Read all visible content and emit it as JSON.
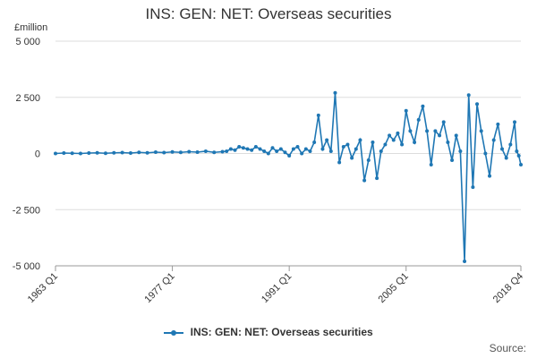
{
  "chart_data": {
    "type": "line",
    "title": "INS: GEN: NET: Overseas securities",
    "ylabel": "£million",
    "xlabel": "",
    "ylim": [
      -5000,
      5000
    ],
    "yticks": [
      -5000,
      -2500,
      0,
      2500,
      5000
    ],
    "ytick_labels": [
      "-5 000",
      "-2 500",
      "0",
      "2 500",
      "5 000"
    ],
    "xticks": [
      "1963 Q1",
      "1977 Q1",
      "1991 Q1",
      "2005 Q1",
      "2018 Q4"
    ],
    "x_start": "1963 Q1",
    "x_end": "2018 Q4",
    "grid": true,
    "legend_position": "bottom",
    "source_label": "Source:",
    "colors": {
      "series": "#1f77b4",
      "grid": "#dddddd",
      "axis": "#999999",
      "text": "#333333"
    },
    "series": [
      {
        "name": "INS: GEN: NET: Overseas securities",
        "x": [
          "1963 Q1",
          "1964 Q1",
          "1965 Q1",
          "1966 Q1",
          "1967 Q1",
          "1968 Q1",
          "1969 Q1",
          "1970 Q1",
          "1971 Q1",
          "1972 Q1",
          "1973 Q1",
          "1974 Q1",
          "1975 Q1",
          "1976 Q1",
          "1977 Q1",
          "1978 Q1",
          "1979 Q1",
          "1980 Q1",
          "1981 Q1",
          "1982 Q1",
          "1983 Q1",
          "1983 Q3",
          "1984 Q1",
          "1984 Q3",
          "1985 Q1",
          "1985 Q3",
          "1986 Q1",
          "1986 Q3",
          "1987 Q1",
          "1987 Q3",
          "1988 Q1",
          "1988 Q3",
          "1989 Q1",
          "1989 Q3",
          "1990 Q1",
          "1990 Q3",
          "1991 Q1",
          "1991 Q3",
          "1992 Q1",
          "1992 Q3",
          "1993 Q1",
          "1993 Q3",
          "1994 Q1",
          "1994 Q3",
          "1995 Q1",
          "1995 Q3",
          "1996 Q1",
          "1996 Q3",
          "1997 Q1",
          "1997 Q3",
          "1998 Q1",
          "1998 Q3",
          "1999 Q1",
          "1999 Q3",
          "2000 Q1",
          "2000 Q3",
          "2001 Q1",
          "2001 Q3",
          "2002 Q1",
          "2002 Q3",
          "2003 Q1",
          "2003 Q3",
          "2004 Q1",
          "2004 Q3",
          "2005 Q1",
          "2005 Q3",
          "2006 Q1",
          "2006 Q3",
          "2007 Q1",
          "2007 Q3",
          "2008 Q1",
          "2008 Q3",
          "2009 Q1",
          "2009 Q3",
          "2010 Q1",
          "2010 Q3",
          "2011 Q1",
          "2011 Q3",
          "2012 Q1",
          "2012 Q3",
          "2013 Q1",
          "2013 Q3",
          "2014 Q1",
          "2014 Q3",
          "2015 Q1",
          "2015 Q3",
          "2016 Q1",
          "2016 Q3",
          "2017 Q1",
          "2017 Q3",
          "2018 Q1",
          "2018 Q2",
          "2018 Q3",
          "2018 Q4"
        ],
        "values": [
          0,
          20,
          10,
          0,
          20,
          30,
          10,
          30,
          40,
          20,
          50,
          30,
          60,
          40,
          70,
          50,
          80,
          60,
          100,
          50,
          80,
          100,
          200,
          150,
          300,
          250,
          200,
          150,
          300,
          200,
          100,
          0,
          250,
          100,
          200,
          50,
          -100,
          200,
          300,
          0,
          200,
          100,
          500,
          1700,
          200,
          600,
          100,
          2700,
          -400,
          300,
          400,
          -200,
          200,
          600,
          -1200,
          -300,
          500,
          -1100,
          100,
          400,
          800,
          600,
          900,
          400,
          1900,
          1000,
          500,
          1500,
          2100,
          1000,
          -500,
          1000,
          800,
          1400,
          500,
          -300,
          800,
          100,
          -4800,
          2600,
          -1500,
          2200,
          1000,
          0,
          -1000,
          600,
          1300,
          200,
          -200,
          400,
          1400,
          100,
          -100,
          -500
        ]
      }
    ]
  }
}
